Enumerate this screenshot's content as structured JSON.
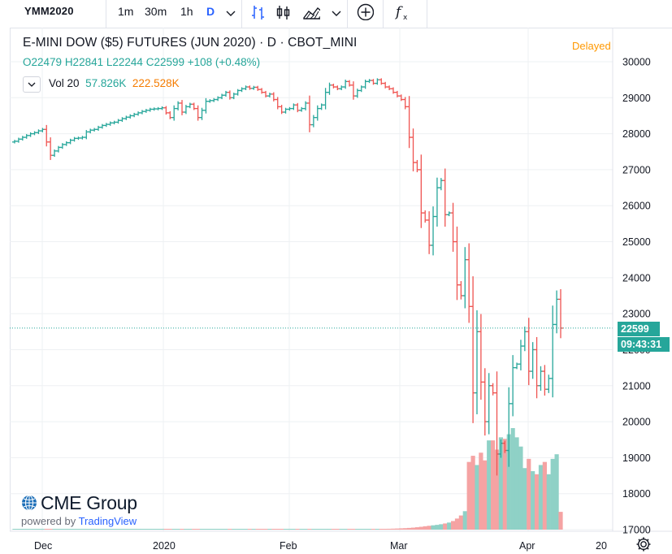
{
  "toolbar": {
    "symbol": "YMM2020",
    "intervals": [
      "1m",
      "30m",
      "1h",
      "D"
    ],
    "active_interval": "D",
    "icons": [
      "dropdown-chevron-icon",
      "bars-style-icon",
      "candles-style-icon",
      "indicators-icon",
      "compare-add-icon",
      "function-icon"
    ]
  },
  "legend": {
    "title": "E-MINI DOW ($5) FUTURES (JUN 2020) · D · CBOT_MINI",
    "open": "O22479",
    "high": "H22841",
    "low": "L22244",
    "close": "C22599",
    "change": "+108 (+0.48%)",
    "vol_label": "Vol 20",
    "vol_value": "57.826K",
    "vol_ma": "222.528K",
    "delayed": "Delayed"
  },
  "price_tags": {
    "last_price": "22599",
    "countdown": "09:43:31"
  },
  "watermark": {
    "brand": "CME Group",
    "powered_prefix": "powered by ",
    "powered_brand": "TradingView"
  },
  "colors": {
    "up": "#26a69a",
    "down": "#ef5350",
    "vol_up": "#8fd1c6",
    "vol_down": "#f5a3a3",
    "grid": "#eef0f3",
    "delayed": "#ff9800",
    "last_line": "#26a69a",
    "toolbar_active": "#2962ff"
  },
  "chart_data": {
    "type": "ohlc",
    "title": "E-MINI DOW ($5) FUTURES (JUN 2020)",
    "y_axis": {
      "ticks": [
        30000,
        29000,
        28000,
        27000,
        26000,
        25000,
        24000,
        23000,
        22000,
        21000,
        20000,
        19000,
        18000,
        17000
      ],
      "range": [
        16950,
        30250
      ]
    },
    "x_axis": {
      "ticks": [
        "Dec",
        "2020",
        "Feb",
        "Mar",
        "Apr",
        "20"
      ]
    },
    "last_price": 22599,
    "close_series": [
      27790,
      27850,
      27900,
      27950,
      28000,
      28030,
      28080,
      28120,
      27770,
      27400,
      27520,
      27620,
      27700,
      27750,
      27820,
      27870,
      27880,
      27900,
      28050,
      28100,
      28120,
      28180,
      28230,
      28260,
      28300,
      28320,
      28370,
      28420,
      28460,
      28500,
      28540,
      28580,
      28620,
      28650,
      28680,
      28690,
      28700,
      28720,
      28580,
      28450,
      28700,
      28850,
      28600,
      28750,
      28820,
      28700,
      28450,
      28650,
      28900,
      28920,
      28950,
      29000,
      29070,
      29150,
      29000,
      29100,
      29200,
      29250,
      29300,
      29260,
      29290,
      29230,
      29150,
      29050,
      29100,
      28950,
      28750,
      28600,
      28680,
      28700,
      28800,
      28650,
      28700,
      28850,
      28250,
      28450,
      28700,
      28800,
      29150,
      29350,
      29300,
      29250,
      29300,
      29450,
      29350,
      29050,
      29200,
      29300,
      29450,
      29480,
      29400,
      29500,
      29400,
      29300,
      29250,
      29150,
      29050,
      28950,
      28750,
      27900,
      27200,
      27000,
      25800,
      25600,
      24900,
      25700,
      26500,
      26700,
      25750,
      25800,
      25000,
      23800,
      23500,
      24500,
      23200,
      20800,
      22500,
      21100,
      20000,
      21000,
      20800,
      19100,
      19400,
      19200,
      20500,
      21500,
      21600,
      22100,
      22500,
      21400,
      22000,
      21000,
      21400,
      20900,
      21200,
      22700,
      23400,
      22599
    ],
    "volume_series": [
      1800,
      1900,
      1700,
      2000,
      2100,
      1900,
      1800,
      2200,
      2300,
      2100,
      1900,
      2000,
      1800,
      1700,
      1900,
      2000,
      2100,
      2200,
      1800,
      1900,
      2000,
      1800,
      1700,
      1600,
      1900,
      2000,
      2100,
      2300,
      2200,
      2000,
      1900,
      1800,
      1700,
      1600,
      1500,
      1500,
      1400,
      1300,
      1500,
      1600,
      1800,
      1900,
      2000,
      1800,
      1700,
      1900,
      2000,
      2100,
      2000,
      1900,
      1800,
      1700,
      1800,
      1900,
      2000,
      2100,
      2000,
      1900,
      1800,
      1700,
      1800,
      1900,
      2000,
      1900,
      1800,
      2000,
      2200,
      2100,
      2000,
      1900,
      1800,
      2000,
      2200,
      2100,
      2300,
      2400,
      2200,
      2100,
      2000,
      1900,
      2000,
      2100,
      2200,
      2300,
      2100,
      2000,
      2100,
      2200,
      2300,
      2100,
      2200,
      2300,
      2400,
      2600,
      2800,
      3200,
      3600,
      4200,
      4800,
      5600,
      6500,
      7800,
      9200,
      11000,
      12500,
      14000,
      15500,
      17500,
      20000,
      23000,
      28000,
      36000,
      46000,
      60000,
      220000,
      240000,
      210000,
      250000,
      225000,
      290000,
      290000,
      260000,
      300000,
      295000,
      310000,
      330000,
      300000,
      270000,
      200000,
      230000,
      190000,
      180000,
      210000,
      220000,
      180000,
      230000,
      245000,
      57826
    ]
  }
}
